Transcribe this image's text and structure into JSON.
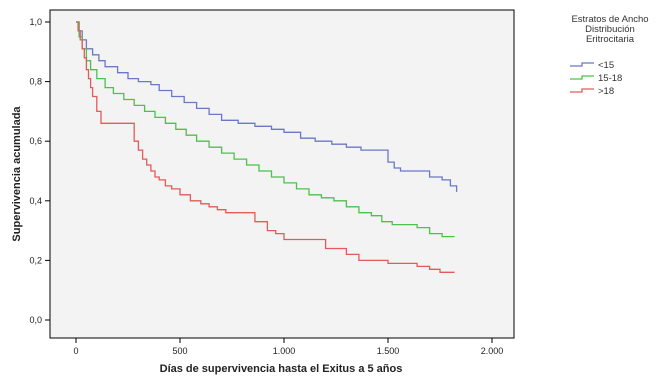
{
  "chart_data": {
    "type": "line",
    "xlabel": "Días de supervivencia hasta el Exitus a 5 años",
    "ylabel": "Supervivencia acumulada",
    "xlim": [
      0,
      2000
    ],
    "ylim": [
      0,
      1.0
    ],
    "x_ticks": [
      0,
      500,
      1000,
      1500,
      2000
    ],
    "x_tick_labels": [
      "0",
      "500",
      "1.000",
      "1.500",
      "2.000"
    ],
    "y_ticks": [
      0,
      0.2,
      0.4,
      0.6,
      0.8,
      1.0
    ],
    "y_tick_labels": [
      "0,0",
      "0,2",
      "0,4",
      "0,6",
      "0,8",
      "1,0"
    ],
    "grid": false,
    "legend": {
      "title": [
        "Estratos de Ancho",
        "Distribución",
        "Eritrocitaria"
      ],
      "placement": "top-right",
      "entries": [
        {
          "label": "<15",
          "color": "#6b78c8"
        },
        {
          "label": "15-18",
          "color": "#4cc24c"
        },
        {
          "label": ">18",
          "color": "#e35a5a"
        }
      ]
    },
    "series": [
      {
        "name": "<15",
        "color": "#6b78c8",
        "x": [
          0,
          15,
          30,
          50,
          80,
          110,
          140,
          200,
          250,
          300,
          360,
          400,
          460,
          520,
          580,
          640,
          700,
          780,
          860,
          940,
          1000,
          1080,
          1150,
          1230,
          1300,
          1370,
          1450,
          1500,
          1530,
          1560,
          1650,
          1700,
          1760,
          1800,
          1830
        ],
        "y": [
          1.0,
          0.97,
          0.94,
          0.91,
          0.89,
          0.87,
          0.85,
          0.83,
          0.81,
          0.8,
          0.79,
          0.77,
          0.75,
          0.73,
          0.71,
          0.69,
          0.67,
          0.66,
          0.65,
          0.64,
          0.63,
          0.61,
          0.6,
          0.59,
          0.58,
          0.57,
          0.57,
          0.53,
          0.51,
          0.5,
          0.5,
          0.48,
          0.47,
          0.45,
          0.43
        ]
      },
      {
        "name": "15-18",
        "color": "#4cc24c",
        "x": [
          0,
          15,
          30,
          50,
          70,
          100,
          140,
          180,
          230,
          280,
          330,
          380,
          430,
          480,
          530,
          580,
          640,
          700,
          760,
          820,
          880,
          940,
          1000,
          1060,
          1120,
          1180,
          1240,
          1300,
          1360,
          1420,
          1470,
          1520,
          1580,
          1640,
          1700,
          1760,
          1820
        ],
        "y": [
          1.0,
          0.95,
          0.91,
          0.87,
          0.84,
          0.81,
          0.78,
          0.76,
          0.74,
          0.72,
          0.7,
          0.68,
          0.66,
          0.64,
          0.62,
          0.6,
          0.58,
          0.56,
          0.54,
          0.52,
          0.5,
          0.48,
          0.46,
          0.44,
          0.42,
          0.41,
          0.4,
          0.38,
          0.36,
          0.35,
          0.33,
          0.32,
          0.32,
          0.31,
          0.29,
          0.28,
          0.28
        ]
      },
      {
        "name": ">18",
        "color": "#e35a5a",
        "x": [
          0,
          10,
          20,
          30,
          40,
          50,
          60,
          70,
          80,
          100,
          120,
          150,
          200,
          280,
          300,
          320,
          340,
          360,
          380,
          400,
          430,
          460,
          500,
          550,
          600,
          640,
          680,
          720,
          760,
          860,
          920,
          960,
          1000,
          1100,
          1200,
          1300,
          1360,
          1420,
          1500,
          1640,
          1700,
          1750,
          1820
        ],
        "y": [
          1.0,
          0.97,
          0.94,
          0.91,
          0.88,
          0.84,
          0.81,
          0.78,
          0.75,
          0.7,
          0.66,
          0.66,
          0.66,
          0.6,
          0.57,
          0.54,
          0.52,
          0.5,
          0.48,
          0.47,
          0.45,
          0.44,
          0.42,
          0.4,
          0.39,
          0.38,
          0.37,
          0.36,
          0.36,
          0.33,
          0.3,
          0.29,
          0.27,
          0.27,
          0.24,
          0.22,
          0.2,
          0.2,
          0.19,
          0.18,
          0.17,
          0.16,
          0.16
        ]
      }
    ]
  }
}
